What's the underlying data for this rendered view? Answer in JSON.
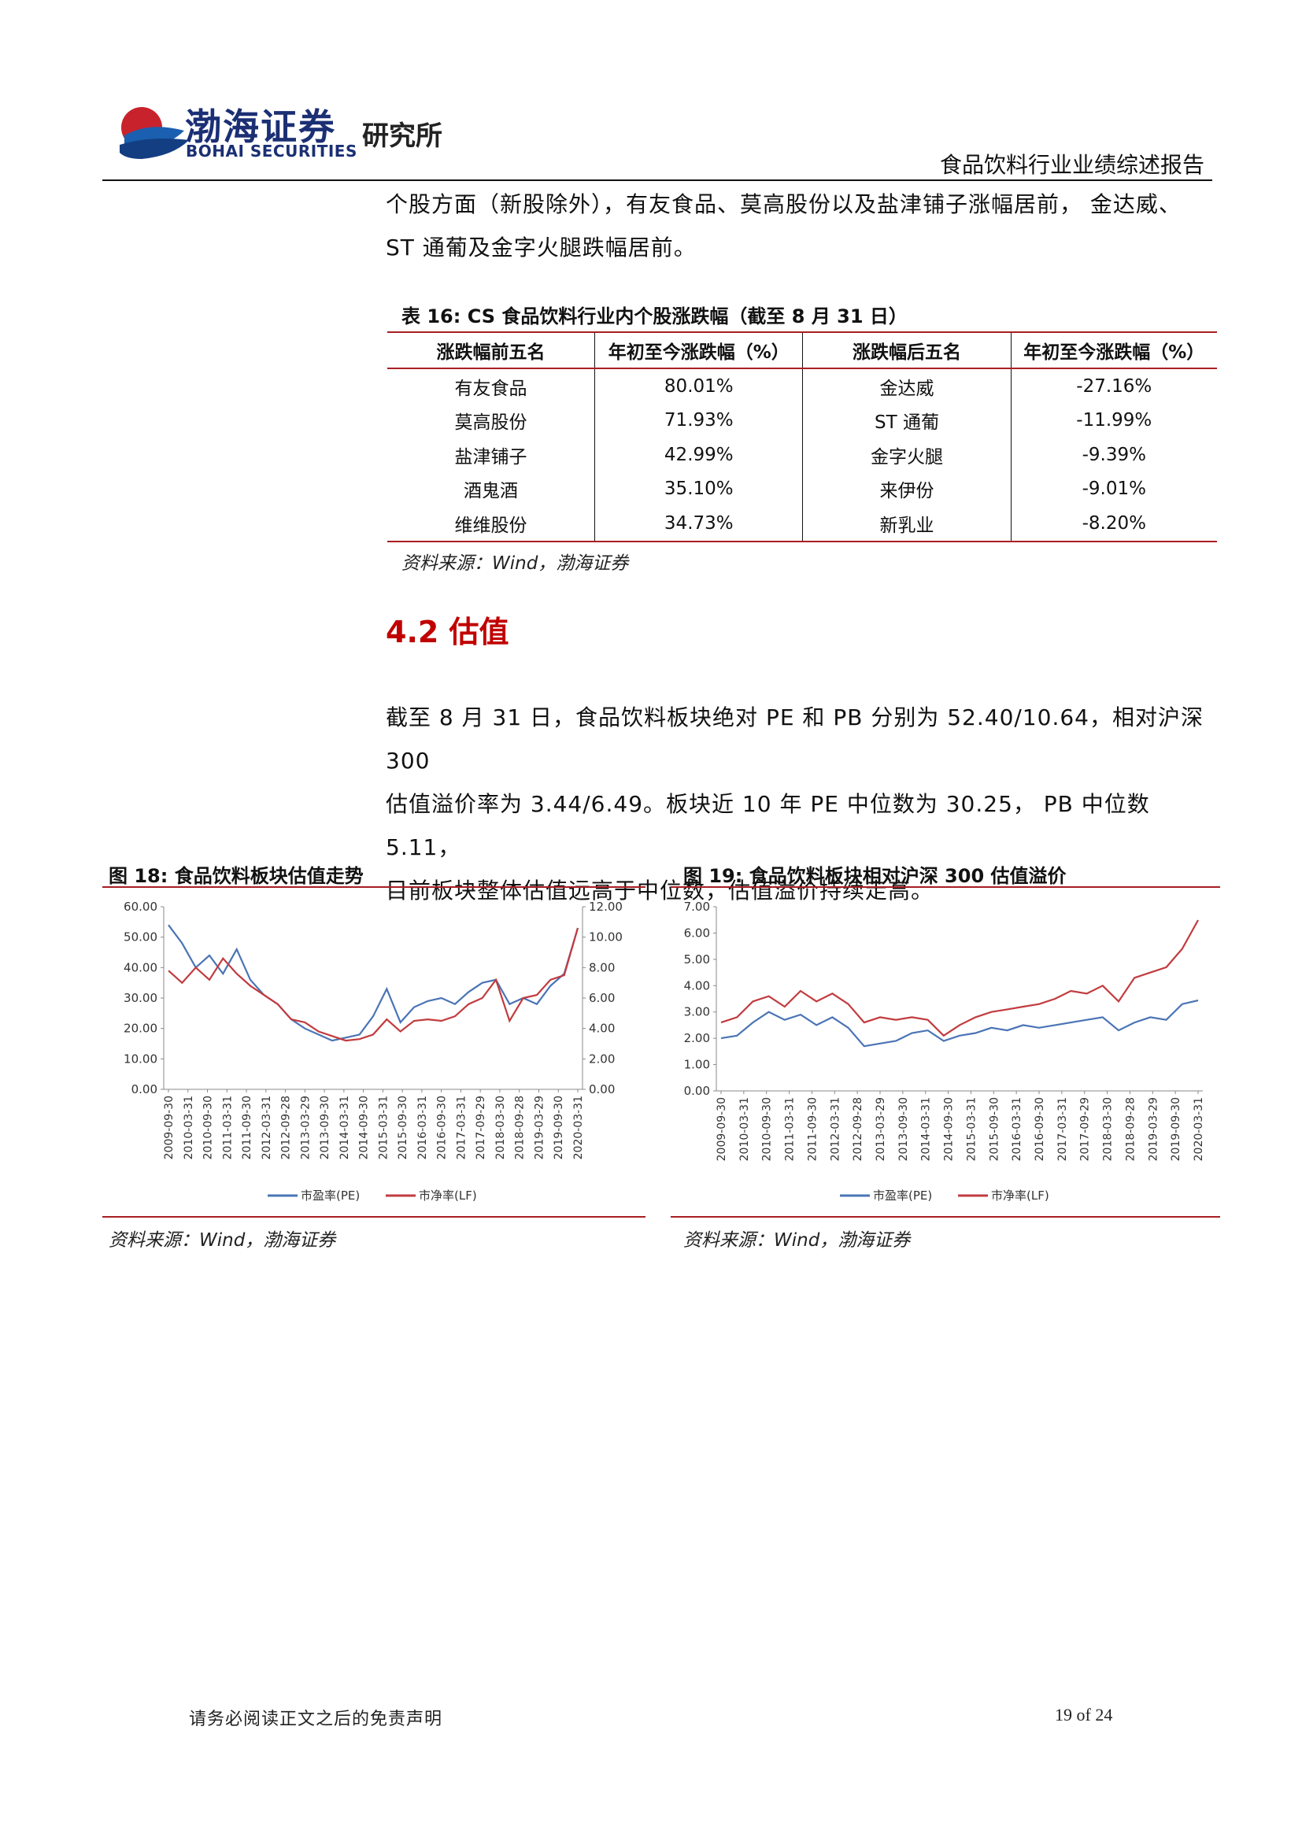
{
  "header": {
    "logo_cn": "渤海证券",
    "logo_en": "BOHAI SECURITIES",
    "institute": "研究所",
    "report_title": "食品饮料行业业绩综述报告"
  },
  "intro": {
    "line1": "个股方面（新股除外），有友食品、莫高股份以及盐津铺子涨幅居前，  金达威、",
    "line2": "ST 通葡及金字火腿跌幅居前。"
  },
  "table": {
    "caption": "表 16:  CS 食品饮料行业内个股涨跌幅（截至 8 月 31 日）",
    "headers": [
      "涨跌幅前五名",
      "年初至今涨跌幅（%）",
      "涨跌幅后五名",
      "年初至今涨跌幅（%）"
    ],
    "rows": [
      [
        "有友食品",
        "80.01%",
        "金达威",
        "-27.16%"
      ],
      [
        "莫高股份",
        "71.93%",
        "ST 通葡",
        "-11.99%"
      ],
      [
        "盐津铺子",
        "42.99%",
        "金字火腿",
        "-9.39%"
      ],
      [
        "酒鬼酒",
        "35.10%",
        "来伊份",
        "-9.01%"
      ],
      [
        "维维股份",
        "34.73%",
        "新乳业",
        "-8.20%"
      ]
    ],
    "source": "资料来源：Wind，渤海证券"
  },
  "section": {
    "title": "4.2 估值",
    "line1": "截至 8 月 31 日，食品饮料板块绝对 PE 和 PB 分别为 52.40/10.64，相对沪深 300",
    "line2": "估值溢价率为 3.44/6.49。板块近 10 年 PE 中位数为 30.25，  PB 中位数 5.11，",
    "line3": "目前板块整体估值远高于中位数，估值溢价持续走高。"
  },
  "figures": {
    "fig18_caption": "图 18:  食品饮料板块估值走势",
    "fig19_caption": "图 19:  食品饮料板块相对沪深 300 估值溢价",
    "source": "资料来源：Wind，渤海证券"
  },
  "colors": {
    "pe": "#4a74b5",
    "pb": "#c23b3e",
    "accent_red": "#a81e23",
    "title_red": "#c00000"
  },
  "chart_data": [
    {
      "type": "line",
      "x_ticks": [
        "2009-09-30",
        "2010-03-31",
        "2010-09-30",
        "2011-03-31",
        "2011-09-30",
        "2012-03-31",
        "2012-09-28",
        "2013-03-29",
        "2013-09-30",
        "2014-03-31",
        "2014-09-30",
        "2015-03-31",
        "2015-09-30",
        "2016-03-31",
        "2016-09-30",
        "2017-03-31",
        "2017-09-29",
        "2018-03-30",
        "2018-09-28",
        "2019-03-29",
        "2019-09-30",
        "2020-03-31"
      ],
      "y_left_ticks": [
        "60.00",
        "50.00",
        "40.00",
        "30.00",
        "20.00",
        "10.00",
        "0.00"
      ],
      "y_right_ticks": [
        "12.00",
        "10.00",
        "8.00",
        "6.00",
        "4.00",
        "2.00",
        "0.00"
      ],
      "y_left_range": [
        0,
        60
      ],
      "y_right_range": [
        0,
        12
      ],
      "series": [
        {
          "name": "市盈率(PE)",
          "axis": "left",
          "values": [
            54,
            48,
            40,
            44,
            38,
            46,
            36,
            31,
            28,
            23,
            20,
            18,
            16,
            17,
            18,
            24,
            33,
            22,
            27,
            29,
            30,
            28,
            32,
            35,
            36,
            28,
            30,
            28,
            34,
            38,
            53
          ]
        },
        {
          "name": "市净率(LF)",
          "axis": "right",
          "values": [
            7.8,
            7.0,
            8.0,
            7.2,
            8.6,
            7.6,
            6.8,
            6.2,
            5.6,
            4.6,
            4.4,
            3.8,
            3.5,
            3.2,
            3.3,
            3.6,
            4.6,
            3.8,
            4.5,
            4.6,
            4.5,
            4.8,
            5.6,
            6.0,
            7.2,
            4.5,
            6.0,
            6.2,
            7.2,
            7.5,
            10.6
          ]
        }
      ],
      "legend": [
        "市盈率(PE)",
        "市净率(LF)"
      ],
      "legend_position": "bottom"
    },
    {
      "type": "line",
      "x_ticks": [
        "2009-09-30",
        "2010-03-31",
        "2010-09-30",
        "2011-03-31",
        "2011-09-30",
        "2012-03-31",
        "2012-09-28",
        "2013-03-29",
        "2013-09-30",
        "2014-03-31",
        "2014-09-30",
        "2015-03-31",
        "2015-09-30",
        "2016-03-31",
        "2016-09-30",
        "2017-03-31",
        "2017-09-29",
        "2018-03-30",
        "2018-09-28",
        "2019-03-29",
        "2019-09-30",
        "2020-03-31"
      ],
      "y_ticks": [
        "7.00",
        "6.00",
        "5.00",
        "4.00",
        "3.00",
        "2.00",
        "1.00",
        "0.00"
      ],
      "y_range": [
        0,
        7
      ],
      "series": [
        {
          "name": "市盈率(PE)",
          "values": [
            2.0,
            2.1,
            2.6,
            3.0,
            2.7,
            2.9,
            2.5,
            2.8,
            2.4,
            1.7,
            1.8,
            1.9,
            2.2,
            2.3,
            1.9,
            2.1,
            2.2,
            2.4,
            2.3,
            2.5,
            2.4,
            2.5,
            2.6,
            2.7,
            2.8,
            2.3,
            2.6,
            2.8,
            2.7,
            3.3,
            3.44
          ]
        },
        {
          "name": "市净率(LF)",
          "values": [
            2.6,
            2.8,
            3.4,
            3.6,
            3.2,
            3.8,
            3.4,
            3.7,
            3.3,
            2.6,
            2.8,
            2.7,
            2.8,
            2.7,
            2.1,
            2.5,
            2.8,
            3.0,
            3.1,
            3.2,
            3.3,
            3.5,
            3.8,
            3.7,
            4.0,
            3.4,
            4.3,
            4.5,
            4.7,
            5.4,
            6.49
          ]
        }
      ],
      "legend": [
        "市盈率(PE)",
        "市净率(LF)"
      ],
      "legend_position": "bottom"
    }
  ],
  "footer": {
    "disclaimer": "请务必阅读正文之后的免责声明",
    "page": "19 of 24"
  }
}
